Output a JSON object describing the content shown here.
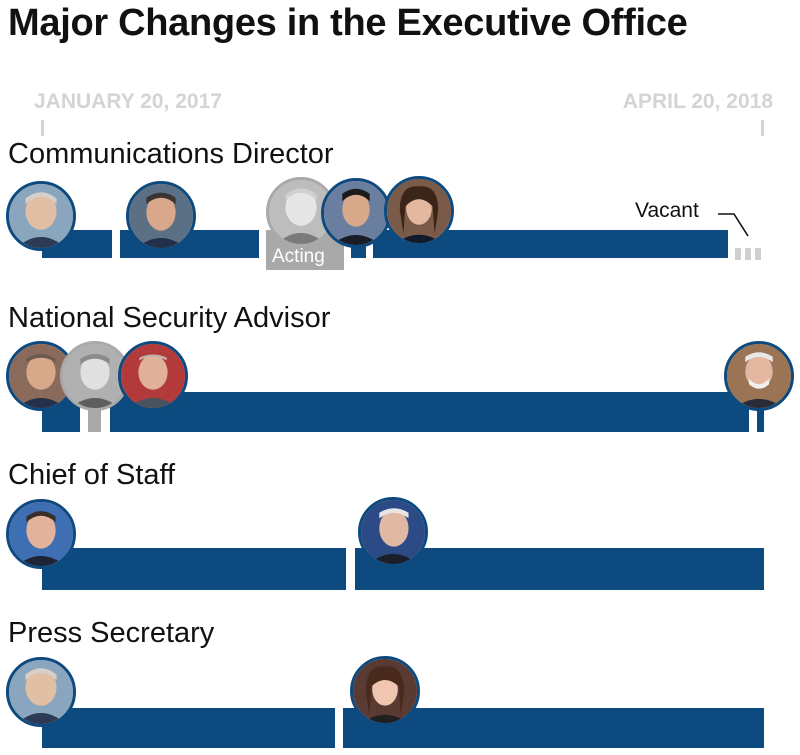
{
  "title": "Major Changes in the Executive Office",
  "dates": {
    "start": "JANUARY 20, 2017",
    "end": "APRIL 20, 2018"
  },
  "colors": {
    "bar": "#0d4a7f",
    "acting": "#a9a9a9",
    "date_text": "#d4d4d4"
  },
  "chart_data": {
    "type": "timeline",
    "x_range": [
      "2017-01-20",
      "2018-04-20"
    ],
    "rows": [
      {
        "label": "Communications Director",
        "tenures": [
          {
            "start": "2017-01-20",
            "end": "2017-03-06",
            "status": "filled"
          },
          {
            "start": "2017-03-08",
            "end": "2017-05-30",
            "status": "filled"
          },
          {
            "start": "2017-06-02",
            "end": "2017-07-21",
            "status": "acting",
            "note": "Acting"
          },
          {
            "start": "2017-07-21",
            "end": "2017-07-31",
            "status": "filled"
          },
          {
            "start": "2017-08-16",
            "end": "2018-03-29",
            "status": "filled"
          },
          {
            "start": "2018-03-29",
            "end": "2018-04-20",
            "status": "vacant",
            "note": "Vacant"
          }
        ]
      },
      {
        "label": "National Security Advisor",
        "tenures": [
          {
            "start": "2017-01-20",
            "end": "2017-02-13",
            "status": "filled"
          },
          {
            "start": "2017-02-13",
            "end": "2017-02-20",
            "status": "acting"
          },
          {
            "start": "2017-02-20",
            "end": "2018-04-09",
            "status": "filled"
          },
          {
            "start": "2018-04-09",
            "end": "2018-04-20",
            "status": "filled"
          }
        ]
      },
      {
        "label": "Chief of Staff",
        "tenures": [
          {
            "start": "2017-01-20",
            "end": "2017-07-31",
            "status": "filled"
          },
          {
            "start": "2017-07-31",
            "end": "2018-04-20",
            "status": "filled"
          }
        ]
      },
      {
        "label": "Press Secretary",
        "tenures": [
          {
            "start": "2017-01-20",
            "end": "2017-07-21",
            "status": "filled"
          },
          {
            "start": "2017-07-26",
            "end": "2018-04-20",
            "status": "filled"
          }
        ]
      }
    ]
  }
}
